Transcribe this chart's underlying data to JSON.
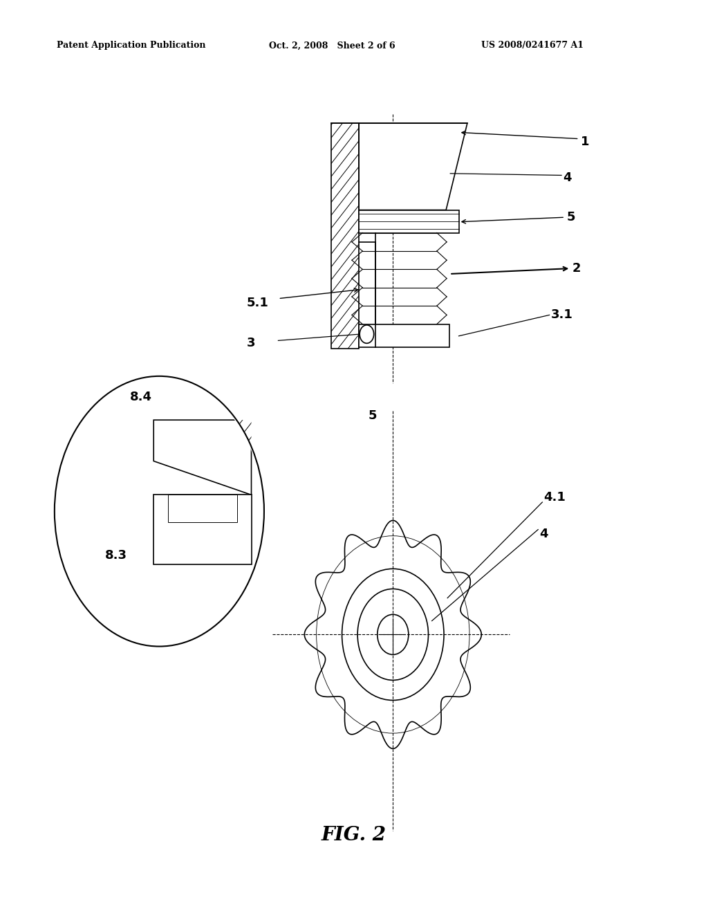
{
  "bg_color": "#ffffff",
  "line_color": "#000000",
  "fig_width": 10.24,
  "fig_height": 13.2,
  "header_left": "Patent Application Publication",
  "header_mid": "Oct. 2, 2008   Sheet 2 of 6",
  "header_right": "US 2008/0241677 A1",
  "fig_label": "FIG. 2"
}
